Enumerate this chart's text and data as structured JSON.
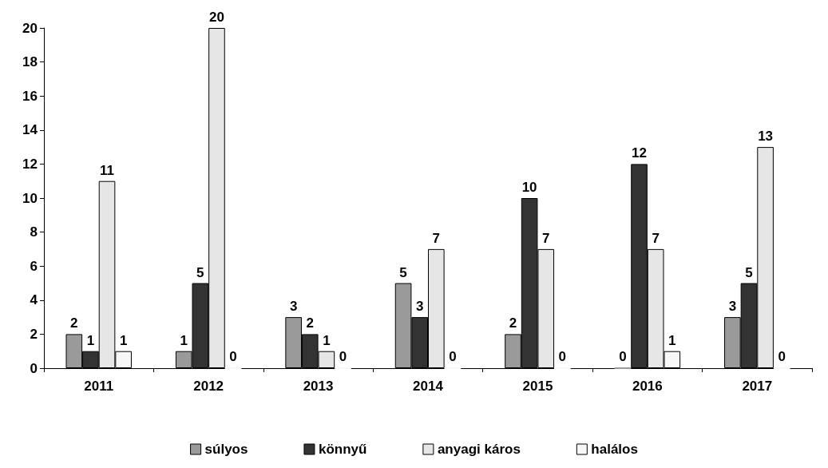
{
  "chart_data": {
    "type": "bar",
    "categories": [
      "2011",
      "2012",
      "2013",
      "2014",
      "2015",
      "2016",
      "2017"
    ],
    "series": [
      {
        "name": "súlyos",
        "color": "#9a9a9a",
        "values": [
          2,
          1,
          3,
          5,
          2,
          0,
          3
        ]
      },
      {
        "name": "könnyű",
        "color": "#333333",
        "values": [
          1,
          5,
          2,
          3,
          10,
          12,
          5
        ]
      },
      {
        "name": "anyagi káros",
        "color": "#e6e6e6",
        "values": [
          11,
          20,
          1,
          7,
          7,
          7,
          13
        ]
      },
      {
        "name": "halálos",
        "color": "#f7f7f7",
        "values": [
          1,
          0,
          0,
          0,
          0,
          1,
          0
        ]
      }
    ],
    "ylim": [
      0,
      20
    ],
    "yticks": [
      0,
      2,
      4,
      6,
      8,
      10,
      12,
      14,
      16,
      18,
      20
    ],
    "grid": false,
    "legend": "bottom",
    "data_labels": true
  }
}
